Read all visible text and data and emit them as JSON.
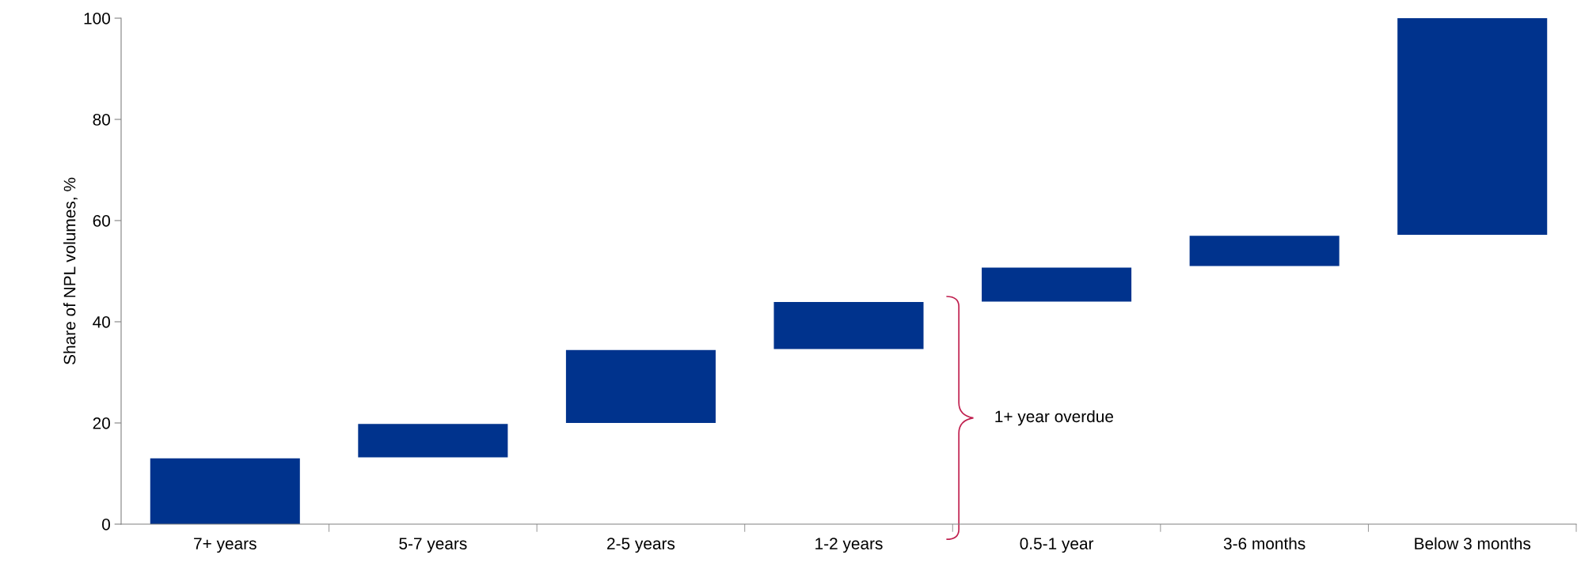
{
  "chart_data": {
    "type": "bar",
    "ylabel": "Share of NPL volumes, %",
    "categories": [
      "7+ years",
      "5-7 years",
      "2-5 years",
      "1-2 years",
      "0.5-1 year",
      "3-6 months",
      "Below 3 months"
    ],
    "base": [
      0,
      13.2,
      20,
      34.6,
      44,
      51,
      57.2
    ],
    "values": [
      13,
      6.6,
      14.4,
      9.3,
      6.7,
      6,
      42.8
    ],
    "color": "#00338d",
    "ylim": [
      0,
      100
    ],
    "yticks": [
      0,
      20,
      40,
      60,
      80,
      100
    ],
    "grid": false,
    "legend": false,
    "annotations": [
      "1+ year overdue"
    ]
  }
}
